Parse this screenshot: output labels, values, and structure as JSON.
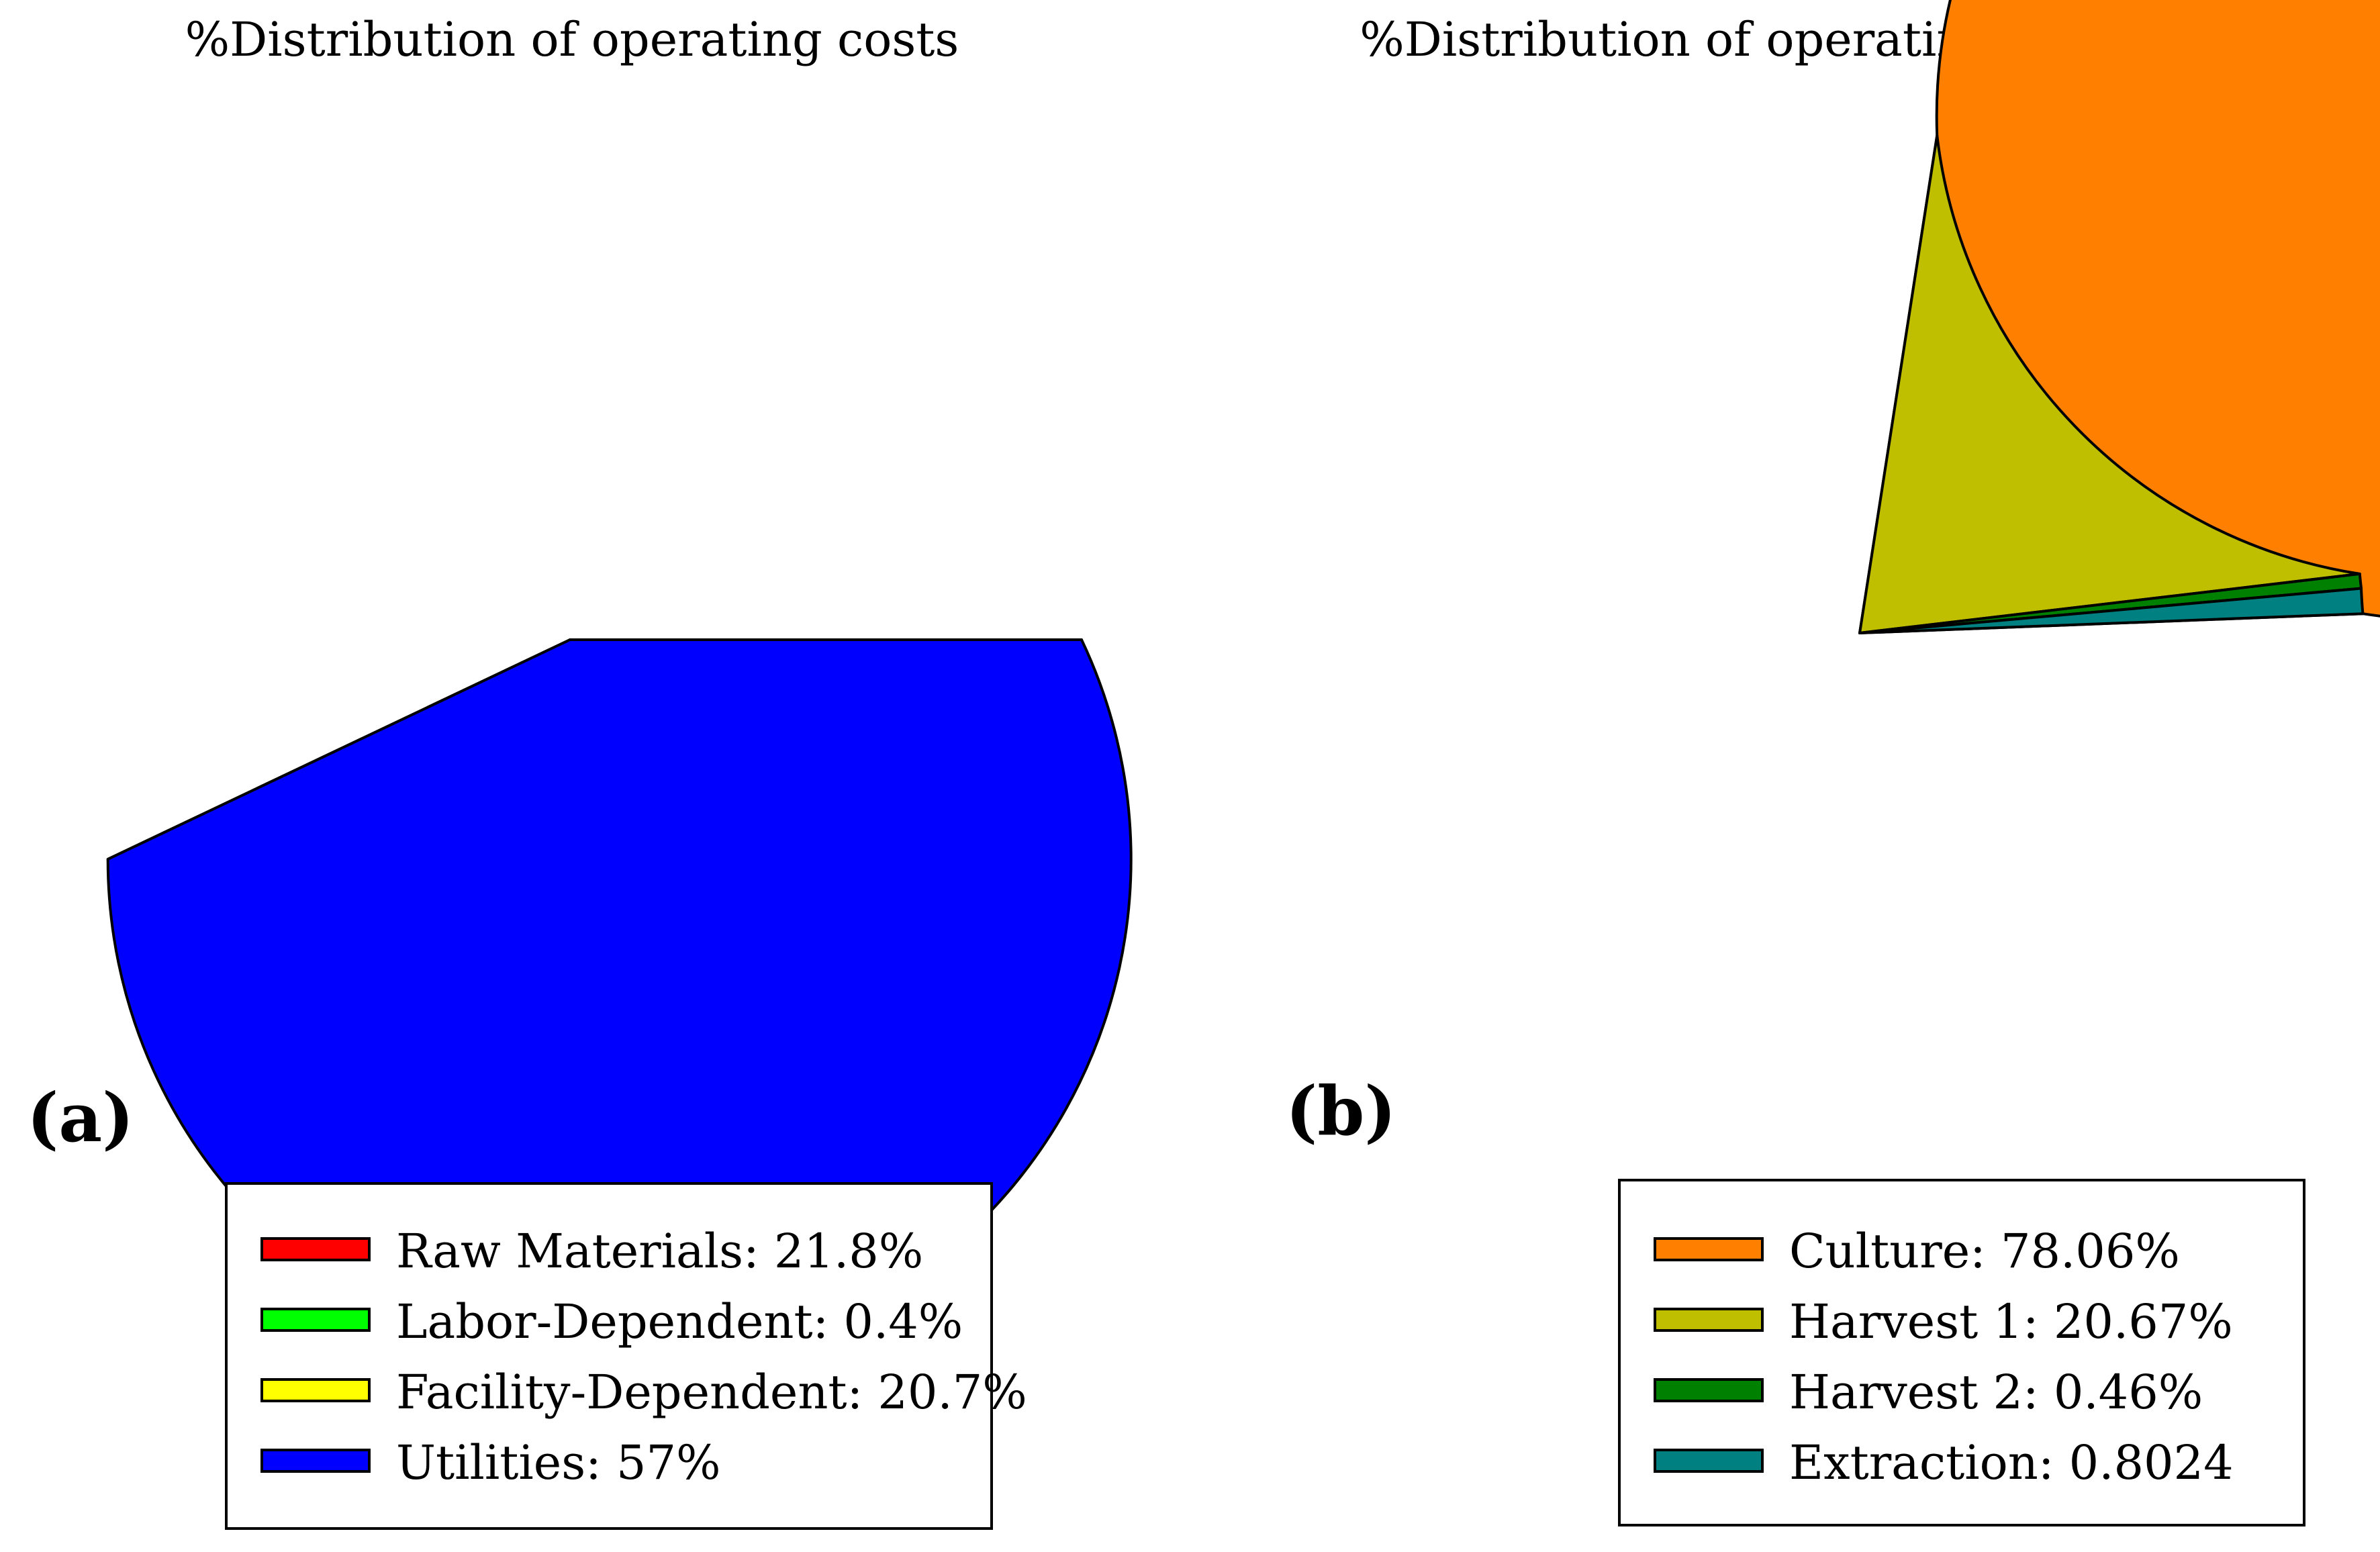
{
  "chart_data": [
    {
      "type": "pie",
      "title": "%Distribution of operating costs",
      "panel_label": "(a)",
      "labels": [
        "Raw Materials",
        "Labor-Dependent",
        "Facility-Dependent",
        "Utilities"
      ],
      "values": [
        21.8,
        0.4,
        20.7,
        57
      ],
      "colors": [
        "#ff0000",
        "#00ff00",
        "#ffff00",
        "#0000ff"
      ],
      "legend": [
        "Raw Materials: 21.8%",
        "Labor-Dependent: 0.4%",
        "Facility-Dependent: 20.7%",
        "Utilities: 57%"
      ],
      "legend_position": "bottom"
    },
    {
      "type": "pie",
      "title": "%Distribution of operating costs by stage",
      "panel_label": "(b)",
      "labels": [
        "Culture",
        "Harvest 1",
        "Harvest 2",
        "Extraction"
      ],
      "values": [
        78.06,
        20.67,
        0.46,
        0.8024
      ],
      "colors": [
        "#ff8000",
        "#bfbf00",
        "#008000",
        "#008080"
      ],
      "legend": [
        "Culture: 78.06%",
        "Harvest 1: 20.67%",
        "Harvest 2: 0.46%",
        "Extraction: 0.8024"
      ],
      "legend_position": "bottom"
    }
  ]
}
